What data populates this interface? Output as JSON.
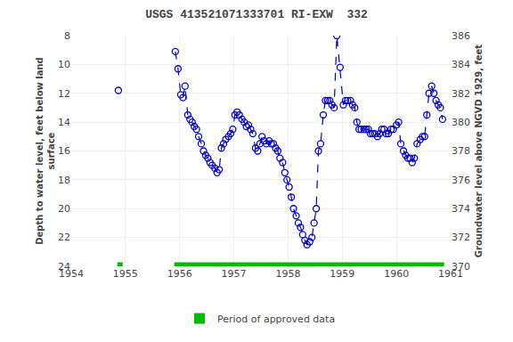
{
  "chart_data": {
    "type": "line",
    "title": "USGS 413521071333701 RI-EXW  332",
    "ylabel": "Depth to water level, feet below land\nsurface",
    "y2label": "Groundwater level above NGVD 1929, feet",
    "xlim": [
      1954,
      1961
    ],
    "xticks": [
      1954,
      1955,
      1956,
      1957,
      1958,
      1959,
      1960,
      1961
    ],
    "ylim": [
      24,
      8
    ],
    "yticks": [
      8,
      10,
      12,
      14,
      16,
      18,
      20,
      22,
      24
    ],
    "y2lim": [
      370,
      386
    ],
    "y2ticks": [
      370,
      372,
      374,
      376,
      378,
      380,
      382,
      384,
      386
    ],
    "grid": true,
    "legend": "bottom",
    "approved": {
      "name": "Period of approved data",
      "color": "#00bb00",
      "periods": [
        [
          1954.85,
          1954.95
        ],
        [
          1955.9,
          1960.88
        ]
      ]
    },
    "x": [
      1954.87,
      null,
      1955.92,
      1955.97,
      1956.02,
      1956.06,
      1956.1,
      1956.15,
      1956.19,
      1956.23,
      1956.27,
      1956.31,
      1956.35,
      1956.4,
      1956.44,
      1956.48,
      1956.52,
      1956.56,
      1956.6,
      1956.65,
      1956.69,
      1956.73,
      1956.77,
      1956.81,
      1956.85,
      1956.9,
      1956.94,
      1956.98,
      1957.02,
      1957.06,
      1957.1,
      1957.15,
      1957.19,
      1957.23,
      1957.27,
      1957.31,
      1957.35,
      1957.4,
      1957.44,
      1957.48,
      1957.52,
      1957.56,
      1957.6,
      1957.65,
      1957.69,
      1957.73,
      1957.77,
      1957.81,
      1957.85,
      1957.9,
      1957.94,
      1957.98,
      1958.02,
      1958.06,
      1958.1,
      1958.15,
      1958.19,
      1958.23,
      1958.27,
      1958.31,
      1958.35,
      1958.4,
      1958.44,
      1958.48,
      1958.52,
      1958.56,
      1958.6,
      1958.65,
      1958.69,
      1958.73,
      1958.77,
      1958.81,
      1958.85,
      1958.9,
      1958.96,
      1959.02,
      1959.06,
      1959.1,
      1959.15,
      1959.19,
      1959.23,
      1959.27,
      1959.31,
      1959.35,
      1959.4,
      1959.44,
      1959.48,
      1959.52,
      1959.56,
      1959.6,
      1959.65,
      1959.69,
      1959.73,
      1959.77,
      1959.81,
      1959.85,
      1959.9,
      1959.94,
      1960.0,
      1960.04,
      1960.08,
      1960.13,
      1960.17,
      1960.21,
      1960.25,
      1960.29,
      1960.33,
      1960.38,
      1960.44,
      1960.48,
      1960.52,
      1960.56,
      1960.6,
      1960.65,
      1960.69,
      1960.73,
      1960.77,
      1960.81,
      1960.85
    ],
    "series": [
      {
        "color": "#0000cc",
        "line_style": "dash",
        "marker": "circle-open",
        "values": [
          11.8,
          null,
          9.1,
          10.3,
          12.1,
          12.3,
          11.5,
          13.5,
          13.8,
          14.0,
          14.3,
          14.5,
          15.0,
          15.5,
          16.0,
          16.3,
          16.5,
          16.8,
          17.0,
          17.2,
          17.5,
          17.3,
          15.8,
          15.5,
          15.2,
          15.0,
          14.8,
          14.5,
          13.5,
          13.3,
          13.5,
          13.8,
          14.0,
          14.3,
          14.2,
          14.5,
          14.8,
          15.8,
          16.0,
          15.5,
          15.0,
          15.3,
          15.5,
          15.3,
          15.5,
          15.5,
          15.8,
          16.0,
          16.5,
          16.8,
          17.5,
          18.0,
          18.5,
          19.2,
          20.0,
          20.5,
          21.0,
          21.3,
          21.8,
          22.2,
          22.5,
          22.3,
          22.0,
          21.0,
          20.0,
          16.0,
          15.5,
          13.5,
          12.5,
          12.5,
          12.5,
          12.8,
          13.0,
          8.0,
          10.2,
          12.8,
          12.5,
          12.5,
          12.5,
          12.8,
          13.0,
          14.0,
          14.5,
          14.5,
          14.5,
          14.5,
          14.5,
          14.8,
          14.8,
          14.8,
          15.0,
          14.8,
          14.5,
          14.5,
          14.8,
          14.8,
          14.5,
          14.5,
          14.2,
          14.0,
          15.5,
          16.0,
          16.3,
          16.5,
          16.5,
          16.8,
          16.5,
          15.5,
          15.2,
          15.0,
          15.0,
          13.5,
          12.0,
          11.5,
          12.0,
          12.5,
          12.8,
          13.0,
          13.8
        ]
      }
    ]
  }
}
